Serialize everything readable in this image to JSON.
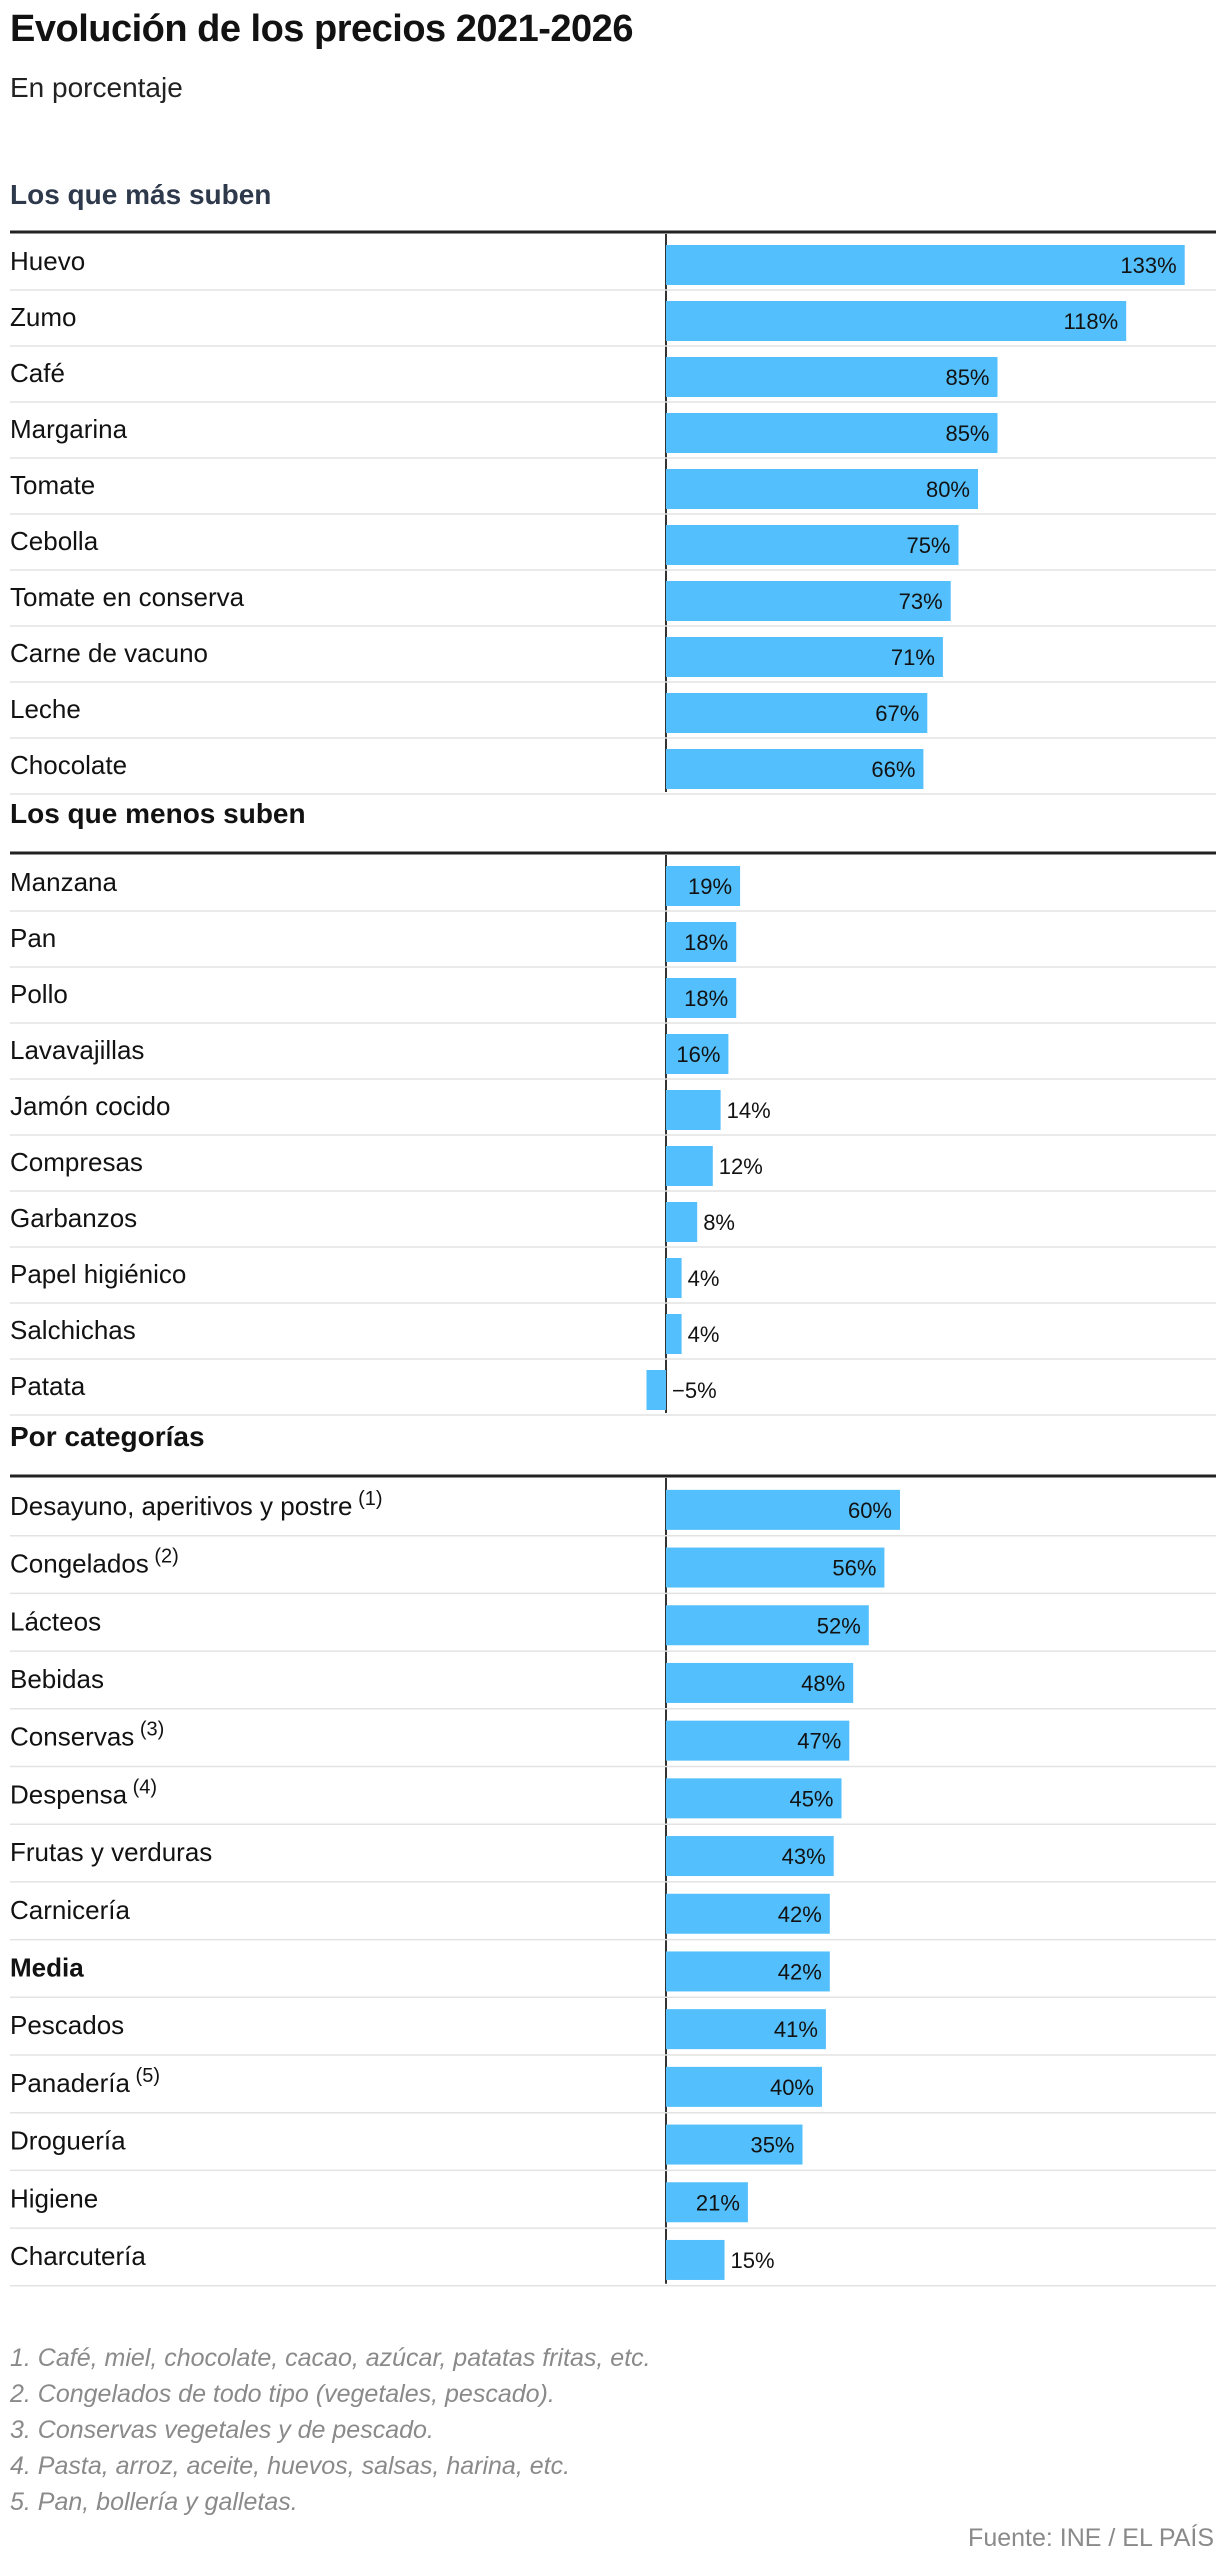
{
  "title": "Evolución de los precios 2021-2026",
  "subtitle": "En porcentaje",
  "bar_color": "#53bffc",
  "chart_data": [
    {
      "type": "bar",
      "orientation": "horizontal",
      "section_title": "Los que más suben",
      "categories": [
        "Huevo",
        "Zumo",
        "Café",
        "Margarina",
        "Tomate",
        "Cebolla",
        "Tomate en conserva",
        "Carne de vacuno",
        "Leche",
        "Chocolate"
      ],
      "values": [
        133,
        118,
        85,
        85,
        80,
        75,
        73,
        71,
        67,
        66
      ],
      "labels": [
        "133%",
        "118%",
        "85%",
        "85%",
        "80%",
        "75%",
        "73%",
        "71%",
        "67%",
        "66%"
      ]
    },
    {
      "type": "bar",
      "orientation": "horizontal",
      "section_title": "Los que menos suben",
      "categories": [
        "Manzana",
        "Pan",
        "Pollo",
        "Lavavajillas",
        "Jamón cocido",
        "Compresas",
        "Garbanzos",
        "Papel higiénico",
        "Salchichas",
        "Patata"
      ],
      "values": [
        19,
        18,
        18,
        16,
        14,
        12,
        8,
        4,
        4,
        -5
      ],
      "labels": [
        "19%",
        "18%",
        "18%",
        "16%",
        "14%",
        "12%",
        "8%",
        "4%",
        "4%",
        "−5%"
      ]
    },
    {
      "type": "bar",
      "orientation": "horizontal",
      "section_title": "Por categorías",
      "categories": [
        "Desayuno, aperitivos y postre",
        "Congelados",
        "Lácteos",
        "Bebidas",
        "Conservas",
        "Despensa",
        "Frutas y verduras",
        "Carnicería",
        "Media",
        "Pescados",
        "Panadería",
        "Droguería",
        "Higiene",
        "Charcutería"
      ],
      "superscripts": [
        "(1)",
        "(2)",
        "",
        "",
        "(3)",
        "(4)",
        "",
        "",
        "",
        "",
        "(5)",
        "",
        "",
        ""
      ],
      "values": [
        60,
        56,
        52,
        48,
        47,
        45,
        43,
        42,
        42,
        41,
        40,
        35,
        21,
        15
      ],
      "labels": [
        "60%",
        "56%",
        "52%",
        "48%",
        "47%",
        "45%",
        "43%",
        "42%",
        "42%",
        "41%",
        "40%",
        "35%",
        "21%",
        "15%"
      ]
    }
  ],
  "notes": [
    "1. Café, miel, chocolate, cacao, azúcar, patatas fritas, etc.",
    "2. Congelados de todo tipo (vegetales, pescado).",
    "3. Conservas vegetales y de pescado.",
    "4. Pasta, arroz, aceite, huevos, salsas, harina, etc.",
    "5. Pan, bollería y galletas."
  ],
  "source": "Fuente: INE / EL PAÍS"
}
